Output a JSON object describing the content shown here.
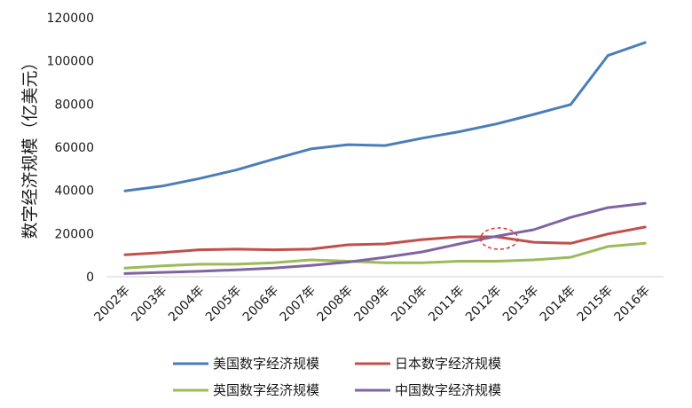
{
  "chart_data": {
    "type": "line",
    "title": "",
    "xlabel": "",
    "ylabel": "数字经济规模（亿美元）",
    "categories": [
      "2002年",
      "2003年",
      "2004年",
      "2005年",
      "2006年",
      "2007年",
      "2008年",
      "2009年",
      "2010年",
      "2011年",
      "2012年",
      "2013年",
      "2014年",
      "2015年",
      "2016年"
    ],
    "ylim": [
      0,
      120000
    ],
    "yticks": [
      0,
      20000,
      40000,
      60000,
      80000,
      100000,
      120000
    ],
    "grid": false,
    "legend_position": "bottom",
    "series": [
      {
        "name": "美国数字经济规模",
        "color": "#4a7ebb",
        "values": [
          39800,
          42000,
          45500,
          49500,
          54500,
          59200,
          61200,
          60800,
          64200,
          67200,
          70800,
          75200,
          79800,
          102500,
          108500
        ]
      },
      {
        "name": "日本数字经济规模",
        "color": "#c0504d",
        "values": [
          10200,
          11200,
          12500,
          12800,
          12500,
          12800,
          14800,
          15200,
          17200,
          18500,
          18500,
          16000,
          15500,
          19800,
          23000
        ]
      },
      {
        "name": "英国数字经济规模",
        "color": "#9bbb59",
        "values": [
          4000,
          5000,
          5800,
          5800,
          6500,
          7800,
          7200,
          6500,
          6500,
          7200,
          7200,
          7800,
          9000,
          14000,
          15500
        ]
      },
      {
        "name": "中国数字经济规模",
        "color": "#8064a2",
        "values": [
          1500,
          2000,
          2500,
          3200,
          4000,
          5200,
          6800,
          9000,
          11500,
          15200,
          18800,
          21800,
          27500,
          32000,
          34000
        ]
      }
    ],
    "annotations": [
      {
        "type": "dashed-ellipse",
        "color": "#e03030",
        "x": "2012年",
        "y": 18500
      }
    ]
  }
}
